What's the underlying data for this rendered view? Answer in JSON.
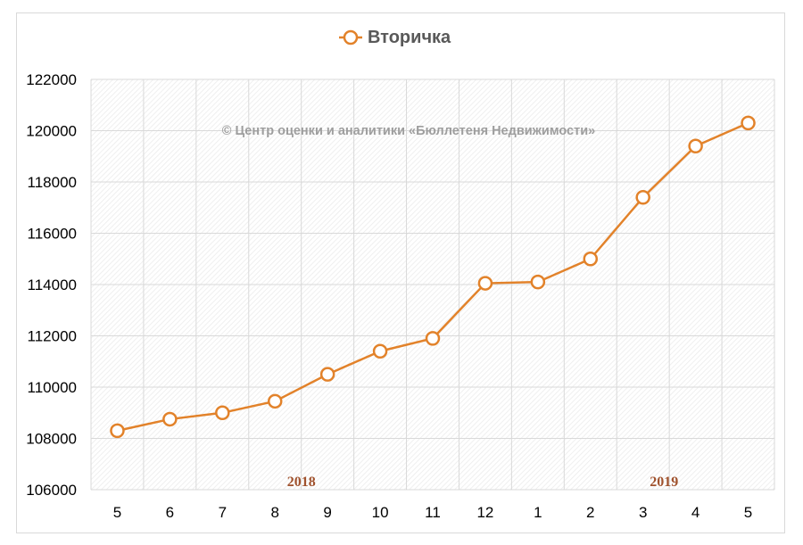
{
  "chart_data": {
    "type": "line",
    "title": "",
    "xlabel": "",
    "ylabel": "",
    "categories": [
      "5",
      "6",
      "7",
      "8",
      "9",
      "10",
      "11",
      "12",
      "1",
      "2",
      "3",
      "4",
      "5"
    ],
    "series": [
      {
        "name": "Вторичка",
        "values": [
          108300,
          108750,
          109000,
          109450,
          110500,
          111400,
          111900,
          114050,
          114100,
          115000,
          117400,
          119400,
          120300
        ]
      }
    ],
    "ylim": [
      106000,
      122000
    ],
    "yticks": [
      "106000",
      "108000",
      "110000",
      "112000",
      "114000",
      "116000",
      "118000",
      "120000",
      "122000"
    ],
    "year_labels": [
      {
        "text": "2018",
        "category_index": 3.5
      },
      {
        "text": "2019",
        "category_index": 10.4
      }
    ],
    "watermark": "© Центр оценки и аналитики «Бюллетеня Недвижимости»",
    "grid": true,
    "legend_position": "top",
    "colors": {
      "series": "#e2822a",
      "year_label": "#a0522d",
      "watermark": "#9e9e9e",
      "axis_text": "#000000",
      "grid": "#d9d9d9"
    }
  }
}
